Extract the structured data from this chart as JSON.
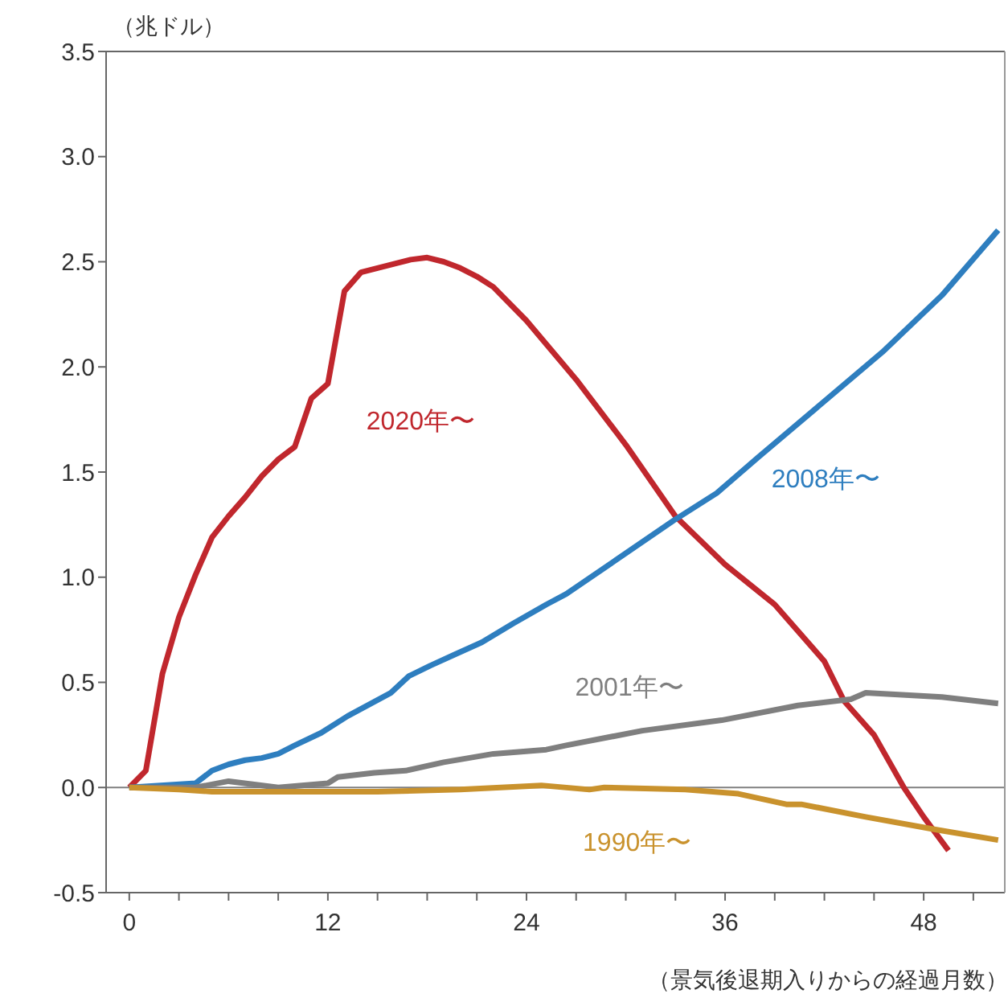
{
  "chart_data": {
    "type": "line",
    "ylabel": "（兆ドル）",
    "xlabel": "（景気後退期入りからの経過月数）",
    "xlim": [
      -1.4,
      52.9
    ],
    "ylim": [
      -0.5,
      3.5
    ],
    "xticks": [
      0,
      {
        "value": 3,
        "label": null
      },
      {
        "value": 6,
        "label": null
      },
      {
        "value": 9,
        "label": null
      },
      12,
      {
        "value": 15,
        "label": null
      },
      {
        "value": 18,
        "label": null
      },
      {
        "value": 21,
        "label": null
      },
      24,
      {
        "value": 27,
        "label": null
      },
      {
        "value": 30,
        "label": null
      },
      {
        "value": 33,
        "label": null
      },
      36,
      {
        "value": 39,
        "label": null
      },
      {
        "value": 42,
        "label": null
      },
      {
        "value": 45,
        "label": null
      },
      48,
      {
        "value": 51,
        "label": null
      }
    ],
    "yticks": [
      -0.5,
      {
        "value": 0,
        "label": "0.0"
      },
      0.5,
      {
        "value": 1,
        "label": "1.0"
      },
      1.5,
      {
        "value": 2,
        "label": "2.0"
      },
      2.5,
      {
        "value": 3,
        "label": "3.0"
      },
      3.5
    ],
    "ref_lines": [
      {
        "axis": "y",
        "value": 0,
        "color": "#808080"
      }
    ],
    "grid": false,
    "legend": false,
    "marker": "none",
    "line_style": "solid",
    "series": [
      {
        "name": "2020年〜",
        "color": "#c0272d",
        "x": [
          0,
          1,
          2,
          3,
          4,
          5,
          6,
          7,
          8,
          9,
          10,
          11,
          12,
          13,
          14,
          15,
          16,
          17,
          18,
          19,
          20,
          21,
          22,
          24,
          27,
          30,
          33,
          36,
          39,
          42,
          43.2,
          45,
          46.8,
          48,
          49.5
        ],
        "values": [
          0,
          0.08,
          0.54,
          0.81,
          1.01,
          1.19,
          1.29,
          1.38,
          1.48,
          1.56,
          1.62,
          1.85,
          1.92,
          2.36,
          2.45,
          2.47,
          2.49,
          2.51,
          2.52,
          2.5,
          2.47,
          2.43,
          2.38,
          2.22,
          1.94,
          1.63,
          1.29,
          1.06,
          0.87,
          0.6,
          0.41,
          0.25,
          0,
          -0.14,
          -0.3
        ]
      },
      {
        "name": "2008年〜",
        "color": "#2e7ebf",
        "x": [
          0,
          4,
          5,
          6,
          7,
          8,
          9,
          10,
          11.6,
          13.2,
          15.8,
          16.9,
          18.2,
          19.6,
          21.3,
          23.2,
          25.2,
          26.4,
          32.9,
          35.5,
          38,
          41.6,
          45.5,
          49.1,
          52.5
        ],
        "values": [
          0,
          0.02,
          0.08,
          0.11,
          0.13,
          0.14,
          0.16,
          0.2,
          0.26,
          0.34,
          0.45,
          0.53,
          0.58,
          0.63,
          0.69,
          0.78,
          0.87,
          0.92,
          1.27,
          1.4,
          1.57,
          1.81,
          2.07,
          2.34,
          2.65
        ]
      },
      {
        "name": "2001年〜",
        "color": "#7f7f7f",
        "x": [
          0,
          4,
          6,
          9,
          12,
          12.6,
          14.8,
          16.7,
          19,
          22,
          25.2,
          26.4,
          31,
          35.8,
          40.4,
          43.6,
          44.5,
          49.1,
          52.5
        ],
        "values": [
          0,
          0,
          0.03,
          0,
          0.02,
          0.05,
          0.07,
          0.08,
          0.12,
          0.16,
          0.18,
          0.2,
          0.27,
          0.32,
          0.39,
          0.42,
          0.45,
          0.43,
          0.4
        ]
      },
      {
        "name": "1990年〜",
        "color": "#c9922d",
        "x": [
          0,
          3,
          5,
          10,
          15,
          20,
          24.9,
          27.8,
          28.7,
          33.6,
          36.8,
          39.7,
          40.6,
          44.5,
          48.7,
          52.5
        ],
        "values": [
          0,
          -0.01,
          -0.02,
          -0.02,
          -0.02,
          -0.01,
          0.01,
          -0.01,
          0,
          -0.01,
          -0.03,
          -0.08,
          -0.08,
          -0.14,
          -0.2,
          -0.25
        ]
      }
    ]
  }
}
